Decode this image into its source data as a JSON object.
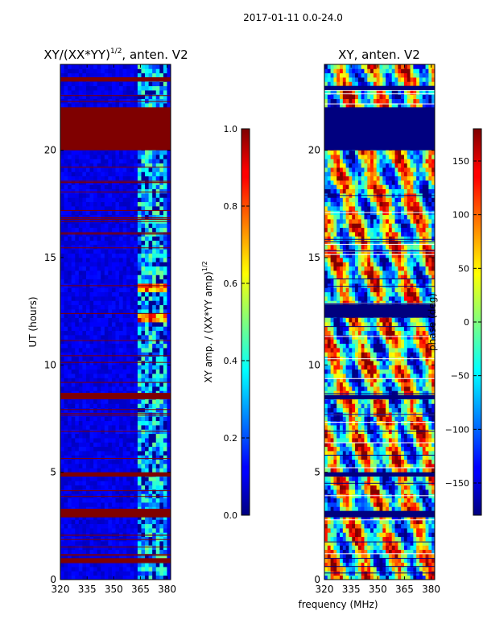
{
  "figure_title": "2017-01-11 0.0-24.0",
  "shared_xlabel": "frequency (MHz)",
  "chart_data": [
    {
      "type": "heatmap",
      "title_main": "XY/(XX*YY)",
      "title_sup": "1/2",
      "title_rest": ", anten. V2",
      "ylabel": "UT (hours)",
      "xlim": [
        320,
        382
      ],
      "ylim": [
        0,
        24
      ],
      "xticks": [
        320,
        335,
        350,
        365,
        380
      ],
      "yticks": [
        0,
        5,
        10,
        15,
        20
      ],
      "colorbar": {
        "label_main": "XY amp. / (XX*YY amp)",
        "label_sup": "1/2",
        "range": [
          0.0,
          1.0
        ],
        "ticks": [
          "0.0",
          "0.2",
          "0.4",
          "0.6",
          "0.8",
          "1.0"
        ]
      },
      "flag_blocks_hours": [
        [
          20.0,
          22.0
        ],
        [
          23.2,
          23.4
        ],
        [
          8.4,
          8.7
        ],
        [
          4.8,
          5.0
        ],
        [
          2.9,
          3.3
        ],
        [
          0.8,
          1.0
        ]
      ],
      "bright_band_mhz": [
        363,
        380
      ]
    },
    {
      "type": "heatmap",
      "title_main": "XY, anten. V2",
      "xlim": [
        320,
        382
      ],
      "ylim": [
        0,
        24
      ],
      "xticks": [
        320,
        335,
        350,
        365,
        380
      ],
      "yticks": [
        0,
        5,
        10,
        15,
        20
      ],
      "colorbar": {
        "label_main": "phase (deg)",
        "range": [
          -180,
          180
        ],
        "ticks": [
          "−150",
          "−100",
          "−50",
          "0",
          "50",
          "100",
          "150"
        ]
      },
      "flag_blocks_hours": [
        [
          20.0,
          22.0
        ],
        [
          22.8,
          23.0
        ],
        [
          12.2,
          12.8
        ],
        [
          8.4,
          8.6
        ],
        [
          4.8,
          5.0
        ],
        [
          2.9,
          3.2
        ]
      ]
    }
  ]
}
